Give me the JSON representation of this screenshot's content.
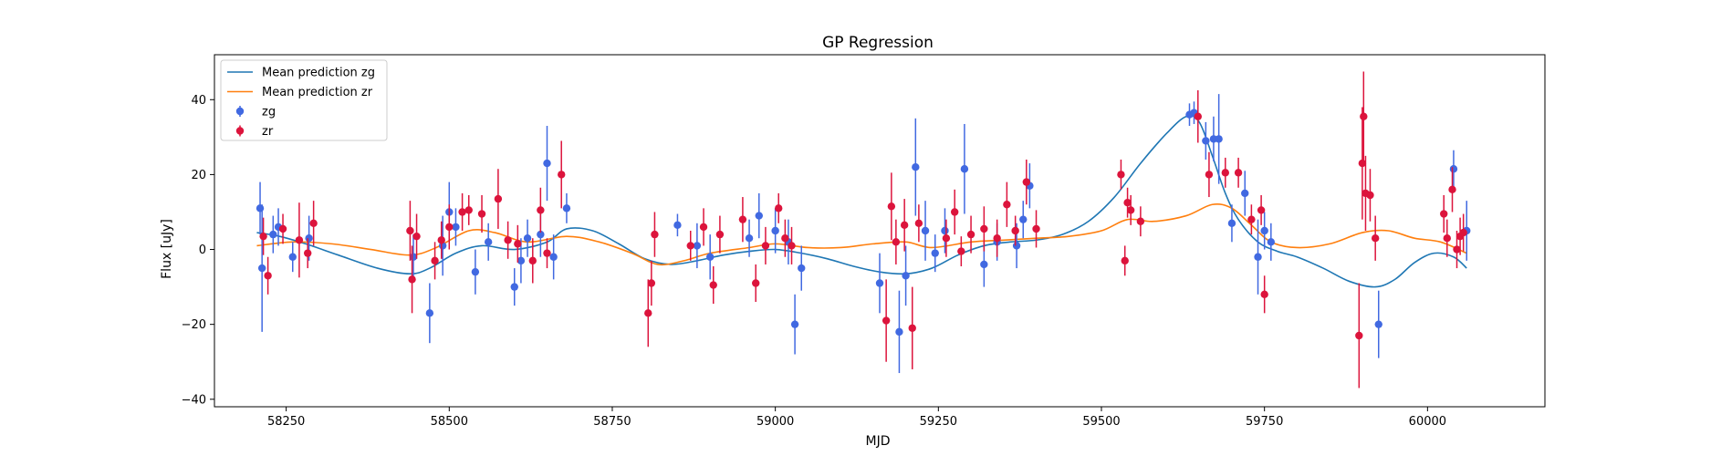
{
  "chart_data": {
    "type": "scatter",
    "title": "GP Regression",
    "xlabel": "MJD",
    "ylabel": "Flux [uJy]",
    "xlim": [
      58140,
      60180
    ],
    "ylim": [
      -42,
      52
    ],
    "xticks": [
      58250,
      58500,
      58750,
      59000,
      59250,
      59500,
      59750,
      60000
    ],
    "yticks": [
      -40,
      -20,
      0,
      20,
      40
    ],
    "grid": false,
    "legend_position": "top-left",
    "series": [
      {
        "name": "Mean prediction zg",
        "kind": "line",
        "color": "#1f77b4",
        "x": [
          58205,
          58240,
          58280,
          58330,
          58390,
          58440,
          58470,
          58510,
          58550,
          58600,
          58650,
          58680,
          58720,
          58760,
          58800,
          58840,
          58880,
          58920,
          58960,
          59000,
          59040,
          59080,
          59120,
          59160,
          59200,
          59240,
          59280,
          59320,
          59360,
          59400,
          59440,
          59480,
          59520,
          59560,
          59600,
          59630,
          59650,
          59670,
          59690,
          59710,
          59740,
          59770,
          59800,
          59840,
          59880,
          59920,
          59950,
          59980,
          60010,
          60040,
          60060
        ],
        "y": [
          4.5,
          3.5,
          1.5,
          -1.5,
          -5,
          -6.5,
          -5,
          -1,
          1,
          0,
          2,
          5.5,
          5,
          1.5,
          -2.5,
          -4,
          -3,
          -1.5,
          -0.5,
          0,
          -1,
          -2.5,
          -4.5,
          -6,
          -6.5,
          -5,
          -1.5,
          1,
          2,
          2.5,
          4,
          7.5,
          14,
          23,
          31,
          35.5,
          34,
          25,
          15,
          8,
          2,
          -0.5,
          -2,
          -5,
          -8.5,
          -10,
          -8,
          -3.5,
          -1,
          -2,
          -5
        ]
      },
      {
        "name": "Mean prediction zr",
        "kind": "line",
        "color": "#ff7f0e",
        "x": [
          58205,
          58260,
          58320,
          58380,
          58440,
          58480,
          58530,
          58570,
          58620,
          58680,
          58730,
          58780,
          58820,
          58860,
          58900,
          58960,
          59000,
          59050,
          59100,
          59150,
          59200,
          59240,
          59300,
          59350,
          59400,
          59450,
          59500,
          59540,
          59580,
          59630,
          59670,
          59700,
          59730,
          59760,
          59800,
          59850,
          59900,
          59940,
          59980,
          60020,
          60060
        ],
        "y": [
          1,
          2,
          1.5,
          0,
          -1.5,
          0.5,
          5,
          4.5,
          2,
          3.5,
          2,
          -1,
          -4,
          -3,
          -1,
          0.5,
          1.5,
          0.5,
          0.5,
          1.5,
          2,
          0.5,
          2,
          2.5,
          3,
          3.5,
          5,
          8,
          7.5,
          9,
          12,
          11,
          6.5,
          2,
          0.5,
          1.5,
          4.5,
          5,
          3,
          2,
          -1
        ]
      },
      {
        "name": "zg",
        "kind": "errorbar",
        "color": "#4169e1",
        "x": [
          58210,
          58213,
          58230,
          58238,
          58260,
          58285,
          58445,
          58470,
          58490,
          58500,
          58510,
          58540,
          58560,
          58600,
          58610,
          58620,
          58640,
          58650,
          58660,
          58680,
          58850,
          58880,
          58900,
          58960,
          58975,
          59000,
          59020,
          59030,
          59040,
          59160,
          59190,
          59200,
          59215,
          59230,
          59245,
          59260,
          59290,
          59320,
          59340,
          59370,
          59380,
          59390,
          59635,
          59642,
          59660,
          59672,
          59680,
          59700,
          59720,
          59740,
          59750,
          59760,
          59925,
          60040,
          60060
        ],
        "y": [
          11,
          -5,
          4,
          6,
          -2,
          3,
          -2,
          -17,
          1,
          10,
          6,
          -6,
          2,
          -10,
          -3,
          3,
          4,
          23,
          -2,
          11,
          6.5,
          1,
          -2,
          3,
          9,
          5,
          2,
          -20,
          -5,
          -9,
          -22,
          -7,
          22,
          5,
          -1,
          5,
          21.5,
          -4,
          2,
          1,
          8,
          17,
          36,
          36.5,
          29,
          29.5,
          29.5,
          7,
          15,
          -2,
          5,
          2,
          -20,
          21.5,
          5
        ],
        "err": [
          7,
          17,
          5,
          5,
          4,
          6,
          6,
          8,
          8,
          8,
          5,
          6,
          5,
          5,
          6,
          5,
          6,
          10,
          6,
          4,
          3,
          6,
          6,
          5,
          6,
          6,
          6,
          8,
          6,
          8,
          11,
          8,
          13,
          8,
          5,
          6,
          12,
          6,
          5,
          6,
          5,
          6,
          3,
          3,
          5,
          6,
          12,
          5,
          6,
          10,
          5,
          5,
          9,
          5,
          8
        ]
      },
      {
        "name": "zr",
        "kind": "errorbar",
        "color": "#dc143c",
        "x": [
          58215,
          58222,
          58245,
          58270,
          58283,
          58292,
          58440,
          58443,
          58450,
          58478,
          58488,
          58500,
          58520,
          58530,
          58550,
          58575,
          58590,
          58605,
          58628,
          58640,
          58650,
          58672,
          58805,
          58810,
          58815,
          58870,
          58890,
          58905,
          58915,
          58950,
          58970,
          58985,
          59005,
          59015,
          59025,
          59170,
          59178,
          59185,
          59198,
          59210,
          59220,
          59262,
          59275,
          59285,
          59300,
          59320,
          59340,
          59355,
          59368,
          59385,
          59400,
          59530,
          59536,
          59540,
          59545,
          59560,
          59648,
          59665,
          59690,
          59710,
          59730,
          59745,
          59750,
          59895,
          59900,
          59902,
          59905,
          59912,
          59920,
          60025,
          60030,
          60038,
          60045,
          60050,
          60055
        ],
        "y": [
          3.5,
          -7,
          5.5,
          2.5,
          -1,
          7,
          5,
          -8,
          3.5,
          -3,
          2.5,
          6,
          10,
          10.5,
          9.5,
          13.5,
          2.5,
          1.5,
          -3,
          10.5,
          -1,
          20,
          -17,
          -9,
          4,
          1,
          6,
          -9.5,
          4,
          8,
          -9,
          1,
          11,
          3,
          1,
          -19,
          11.5,
          2,
          6.5,
          -21,
          7,
          3,
          10,
          -0.5,
          4,
          5.5,
          3,
          12,
          5,
          18,
          5.5,
          20,
          -3,
          12.5,
          10.5,
          7.5,
          35.5,
          20,
          20.5,
          20.5,
          8,
          10.5,
          -12,
          -23,
          23,
          35.5,
          15,
          14.5,
          3,
          9.5,
          3,
          16,
          0,
          3.5,
          4.5
        ],
        "err": [
          5,
          5,
          4,
          10,
          4,
          6,
          8,
          9,
          6,
          5,
          5,
          6,
          5,
          4,
          5,
          8,
          5,
          5,
          6,
          6,
          4,
          9,
          9,
          6,
          6,
          4,
          5,
          5,
          5,
          6,
          5,
          5,
          4,
          5,
          5,
          11,
          9,
          6,
          7,
          11,
          5,
          5,
          6,
          4,
          5,
          6,
          5,
          6,
          4,
          6,
          5,
          4,
          4,
          4,
          4,
          4,
          7,
          6,
          4,
          4,
          4,
          4,
          5,
          14,
          15,
          12,
          10,
          7,
          6,
          5,
          5,
          6,
          5,
          5,
          5
        ]
      }
    ]
  }
}
